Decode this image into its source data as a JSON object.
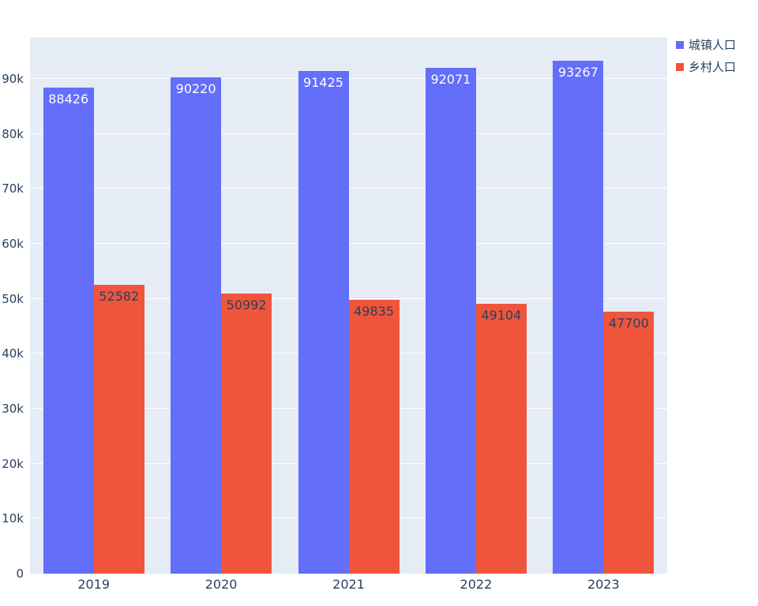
{
  "chart_data": {
    "type": "bar",
    "title": "",
    "xlabel": "",
    "ylabel": "",
    "categories": [
      "2019",
      "2020",
      "2021",
      "2022",
      "2023"
    ],
    "series": [
      {
        "name": "城镇人口",
        "color": "#636efa",
        "label_color": "#ffffff",
        "values": [
          88426,
          90220,
          91425,
          92071,
          93267
        ]
      },
      {
        "name": "乡村人口",
        "color": "#ef553b",
        "label_color": "#2a3f5f",
        "values": [
          52582,
          50992,
          49835,
          49104,
          47700
        ]
      }
    ],
    "ylim": [
      0,
      97600
    ],
    "yticks": [
      0,
      10000,
      20000,
      30000,
      40000,
      50000,
      60000,
      70000,
      80000,
      90000
    ],
    "ytick_labels": [
      "0",
      "10k",
      "20k",
      "30k",
      "40k",
      "50k",
      "60k",
      "70k",
      "80k",
      "90k"
    ],
    "grid": true,
    "legend_position": "top-right",
    "plot_bg": "#e5ecf6",
    "grid_color": "#ffffff",
    "text_color": "#2a3f5f"
  }
}
